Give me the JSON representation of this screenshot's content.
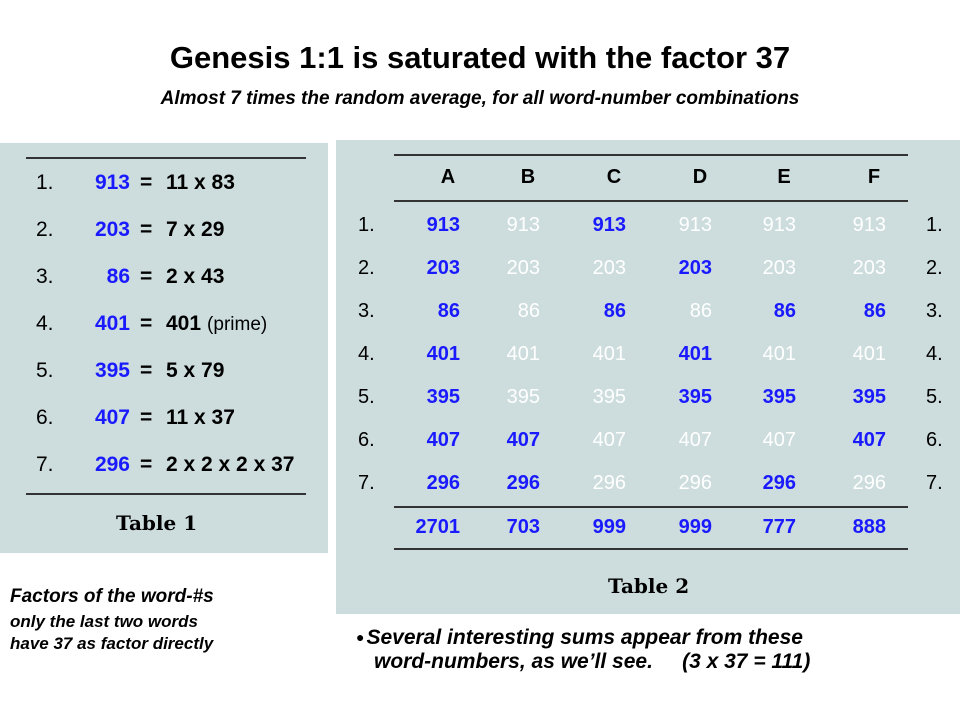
{
  "title": "Genesis 1:1 is saturated with the factor 37",
  "subtitle": "Almost 7 times the random average, for all word-number combinations",
  "table1": {
    "caption": "Table 1",
    "rows": [
      {
        "num": "1.",
        "value": "913",
        "eq": "=",
        "factor": "11 x 83",
        "note": ""
      },
      {
        "num": "2.",
        "value": "203",
        "eq": "=",
        "factor": "7 x 29",
        "note": ""
      },
      {
        "num": "3.",
        "value": "86",
        "eq": "=",
        "factor": "2 x 43",
        "note": ""
      },
      {
        "num": "4.",
        "value": "401",
        "eq": "=",
        "factor": "401",
        "note": "(prime)"
      },
      {
        "num": "5.",
        "value": "395",
        "eq": "=",
        "factor": "5 x 79",
        "note": ""
      },
      {
        "num": "6.",
        "value": "407",
        "eq": "=",
        "factor": "11 x 37",
        "note": ""
      },
      {
        "num": "7.",
        "value": "296",
        "eq": "=",
        "factor": "2 x 2 x 2 x 37",
        "note": ""
      }
    ]
  },
  "table2": {
    "caption": "Table 2",
    "columns": [
      "A",
      "B",
      "C",
      "D",
      "E",
      "F"
    ],
    "row_labels": [
      "1.",
      "2.",
      "3.",
      "4.",
      "5.",
      "6.",
      "7."
    ],
    "rows": [
      [
        "913",
        "913",
        "913",
        "913",
        "913",
        "913"
      ],
      [
        "203",
        "203",
        "203",
        "203",
        "203",
        "203"
      ],
      [
        "86",
        "86",
        "86",
        "86",
        "86",
        "86"
      ],
      [
        "401",
        "401",
        "401",
        "401",
        "401",
        "401"
      ],
      [
        "395",
        "395",
        "395",
        "395",
        "395",
        "395"
      ],
      [
        "407",
        "407",
        "407",
        "407",
        "407",
        "407"
      ],
      [
        "296",
        "296",
        "296",
        "296",
        "296",
        "296"
      ]
    ],
    "highlight": [
      [
        true,
        false,
        true,
        false,
        false,
        false
      ],
      [
        true,
        false,
        false,
        true,
        false,
        false
      ],
      [
        true,
        false,
        true,
        false,
        true,
        true
      ],
      [
        true,
        false,
        false,
        true,
        false,
        false
      ],
      [
        true,
        false,
        false,
        true,
        true,
        true
      ],
      [
        true,
        true,
        false,
        false,
        false,
        true
      ],
      [
        true,
        true,
        false,
        false,
        true,
        false
      ]
    ],
    "sums": [
      "2701",
      "703",
      "999",
      "999",
      "777",
      "888"
    ]
  },
  "note_left": {
    "line1": "Factors of the word-#s",
    "line2": "only the last two words",
    "line3": "have 37 as factor directly"
  },
  "note_right": {
    "bullet": "●",
    "line1": "Several interesting sums appear from these",
    "line2": "word-numbers, as we’ll see.     (3 x 37 = 111)"
  },
  "colors": {
    "highlight": "#1a1aff",
    "plain": "#ffffff",
    "panel": "#cddcdc"
  }
}
